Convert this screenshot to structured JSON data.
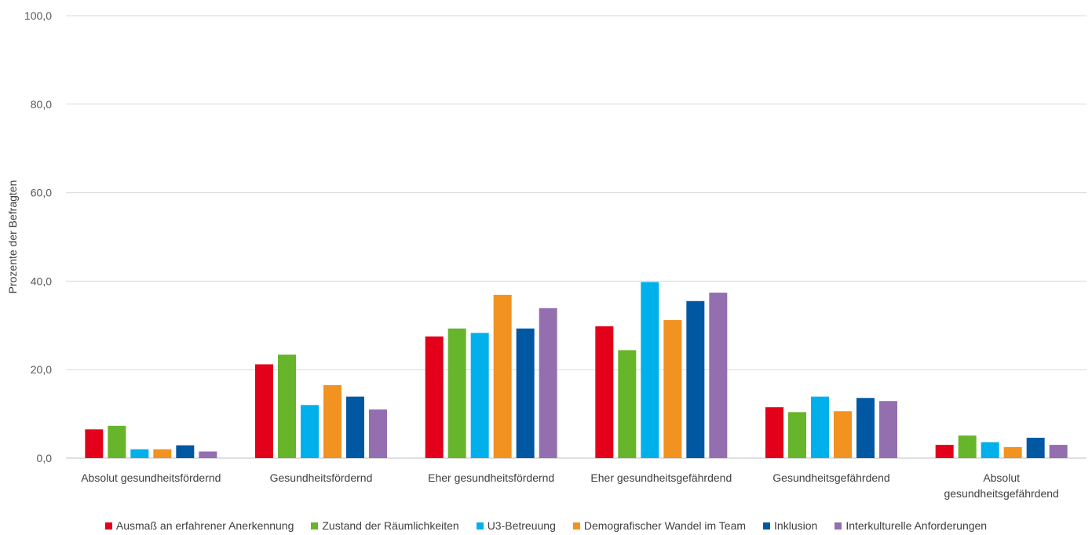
{
  "chart_data": {
    "type": "bar",
    "title": "",
    "xlabel": "",
    "ylabel": "Prozente der Befragten",
    "ylim": [
      0,
      100
    ],
    "yticks": [
      "0,0",
      "20,0",
      "40,0",
      "60,0",
      "80,0",
      "100,0"
    ],
    "grid": true,
    "legend_position": "bottom",
    "categories": [
      [
        "Absolut gesundheitsfördernd"
      ],
      [
        "Gesundheitsfördernd"
      ],
      [
        "Eher gesundheitsfördernd"
      ],
      [
        "Eher gesundheitsgefährdend"
      ],
      [
        "Gesundheitsgefährdend"
      ],
      [
        "Absolut",
        "gesundheitsgefährdend"
      ]
    ],
    "series": [
      {
        "name": "Ausmaß an erfahrener Anerkennung",
        "color": "#e2001a",
        "values": [
          6.5,
          21.2,
          27.5,
          29.8,
          11.5,
          3.0
        ]
      },
      {
        "name": "Zustand der Räumlichkeiten",
        "color": "#67b52b",
        "values": [
          7.3,
          23.4,
          29.3,
          24.4,
          10.4,
          5.1
        ]
      },
      {
        "name": "U3-Betreuung",
        "color": "#00b0ea",
        "values": [
          2.0,
          12.0,
          28.3,
          39.8,
          13.9,
          3.6
        ]
      },
      {
        "name": "Demografischer Wandel im Team",
        "color": "#f29221",
        "values": [
          2.0,
          16.5,
          36.9,
          31.2,
          10.6,
          2.5
        ]
      },
      {
        "name": "Inklusion",
        "color": "#0058a3",
        "values": [
          2.9,
          13.9,
          29.3,
          35.5,
          13.6,
          4.6
        ]
      },
      {
        "name": "Interkulturelle Anforderungen",
        "color": "#946fb0",
        "values": [
          1.5,
          11.0,
          33.9,
          37.4,
          12.9,
          3.0
        ]
      }
    ]
  }
}
